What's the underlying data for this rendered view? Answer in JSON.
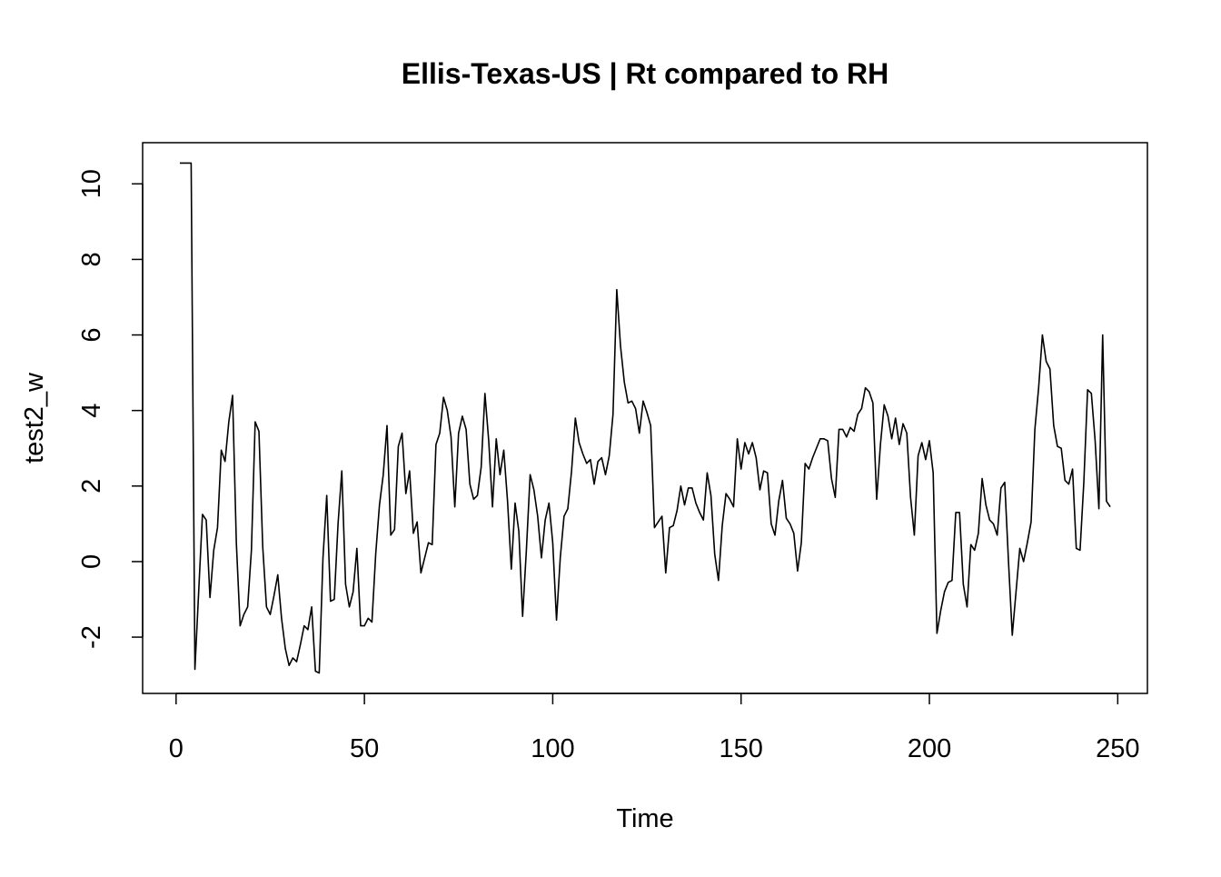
{
  "chart_data": {
    "type": "line",
    "title": "Ellis-Texas-US | Rt compared to RH",
    "xlabel": "Time",
    "ylabel": "test2_w",
    "color": "#000000",
    "x": [
      1,
      2,
      3,
      4,
      5,
      6,
      7,
      8,
      9,
      10,
      11,
      12,
      13,
      14,
      15,
      16,
      17,
      18,
      19,
      20,
      21,
      22,
      23,
      24,
      25,
      26,
      27,
      28,
      29,
      30,
      31,
      32,
      33,
      34,
      35,
      36,
      37,
      38,
      39,
      40,
      41,
      42,
      43,
      44,
      45,
      46,
      47,
      48,
      49,
      50,
      51,
      52,
      53,
      54,
      55,
      56,
      57,
      58,
      59,
      60,
      61,
      62,
      63,
      64,
      65,
      66,
      67,
      68,
      69,
      70,
      71,
      72,
      73,
      74,
      75,
      76,
      77,
      78,
      79,
      80,
      81,
      82,
      83,
      84,
      85,
      86,
      87,
      88,
      89,
      90,
      91,
      92,
      93,
      94,
      95,
      96,
      97,
      98,
      99,
      100,
      101,
      102,
      103,
      104,
      105,
      106,
      107,
      108,
      109,
      110,
      111,
      112,
      113,
      114,
      115,
      116,
      117,
      118,
      119,
      120,
      121,
      122,
      123,
      124,
      125,
      126,
      127,
      128,
      129,
      130,
      131,
      132,
      133,
      134,
      135,
      136,
      137,
      138,
      139,
      140,
      141,
      142,
      143,
      144,
      145,
      146,
      147,
      148,
      149,
      150,
      151,
      152,
      153,
      154,
      155,
      156,
      157,
      158,
      159,
      160,
      161,
      162,
      163,
      164,
      165,
      166,
      167,
      168,
      169,
      170,
      171,
      172,
      173,
      174,
      175,
      176,
      177,
      178,
      179,
      180,
      181,
      182,
      183,
      184,
      185,
      186,
      187,
      188,
      189,
      190,
      191,
      192,
      193,
      194,
      195,
      196,
      197,
      198,
      199,
      200,
      201,
      202,
      203,
      204,
      205,
      206,
      207,
      208,
      209,
      210,
      211,
      212,
      213,
      214,
      215,
      216,
      217,
      218,
      219,
      220,
      221,
      222,
      223,
      224,
      225,
      226,
      227,
      228,
      229,
      230,
      231,
      232,
      233,
      234,
      235,
      236,
      237,
      238,
      239,
      240,
      241,
      242,
      243,
      244,
      245,
      246,
      247,
      248
    ],
    "values": [
      10.55,
      10.55,
      10.55,
      10.55,
      -2.85,
      -0.8,
      1.25,
      1.1,
      -0.95,
      0.3,
      0.9,
      2.95,
      2.65,
      3.7,
      4.4,
      0.5,
      -1.7,
      -1.4,
      -1.2,
      0.3,
      3.7,
      3.45,
      0.4,
      -1.2,
      -1.4,
      -0.9,
      -0.35,
      -1.5,
      -2.3,
      -2.75,
      -2.55,
      -2.65,
      -2.2,
      -1.7,
      -1.8,
      -1.2,
      -2.9,
      -2.95,
      0.1,
      1.75,
      -1.05,
      -1.0,
      1.0,
      2.4,
      -0.6,
      -1.2,
      -0.8,
      0.35,
      -1.7,
      -1.7,
      -1.5,
      -1.6,
      0.2,
      1.5,
      2.3,
      3.6,
      0.7,
      0.85,
      3.05,
      3.4,
      1.8,
      2.4,
      0.75,
      1.05,
      -0.3,
      0.1,
      0.5,
      0.45,
      3.1,
      3.4,
      4.35,
      4.0,
      3.3,
      1.45,
      3.4,
      3.85,
      3.5,
      2.05,
      1.65,
      1.75,
      2.5,
      4.45,
      3.2,
      1.45,
      3.25,
      2.3,
      2.95,
      1.6,
      -0.2,
      1.55,
      0.8,
      -1.45,
      0.3,
      2.3,
      1.9,
      1.2,
      0.1,
      1.1,
      1.55,
      0.5,
      -1.55,
      0.1,
      1.2,
      1.4,
      2.4,
      3.8,
      3.15,
      2.85,
      2.6,
      2.7,
      2.05,
      2.65,
      2.75,
      2.3,
      2.8,
      3.9,
      7.2,
      5.7,
      4.75,
      4.2,
      4.25,
      4.05,
      3.4,
      4.25,
      3.95,
      3.6,
      0.9,
      1.05,
      1.2,
      -0.3,
      0.9,
      0.95,
      1.35,
      2.0,
      1.5,
      1.95,
      1.95,
      1.55,
      1.3,
      1.1,
      2.35,
      1.75,
      0.2,
      -0.5,
      0.95,
      1.8,
      1.65,
      1.45,
      3.25,
      2.45,
      3.15,
      2.85,
      3.15,
      2.75,
      1.9,
      2.4,
      2.35,
      1.0,
      0.7,
      1.6,
      2.15,
      1.15,
      1.0,
      0.75,
      -0.25,
      0.5,
      2.6,
      2.45,
      2.75,
      3.0,
      3.25,
      3.25,
      3.2,
      2.2,
      1.7,
      3.5,
      3.5,
      3.3,
      3.55,
      3.45,
      3.9,
      4.05,
      4.6,
      4.5,
      4.2,
      1.65,
      3.1,
      4.15,
      3.85,
      3.25,
      3.8,
      3.1,
      3.65,
      3.4,
      1.7,
      0.7,
      2.8,
      3.15,
      2.7,
      3.2,
      2.35,
      -1.9,
      -1.3,
      -0.8,
      -0.55,
      -0.5,
      1.3,
      1.3,
      -0.6,
      -1.2,
      0.45,
      0.3,
      0.75,
      2.2,
      1.5,
      1.1,
      1.0,
      0.7,
      1.95,
      2.1,
      0.0,
      -1.95,
      -0.8,
      0.35,
      0.0,
      0.5,
      1.05,
      3.5,
      4.6,
      6.0,
      5.3,
      5.1,
      3.6,
      3.05,
      3.0,
      2.15,
      2.05,
      2.45,
      0.35,
      0.3,
      2.1,
      4.55,
      4.45,
      3.2,
      1.4,
      6.0,
      1.6,
      1.45
    ],
    "xlim": [
      -8.88,
      257.88
    ],
    "ylim": [
      -3.49,
      11.09
    ],
    "xticks": [
      0,
      50,
      100,
      150,
      200,
      250
    ],
    "yticks": [
      -2,
      0,
      2,
      4,
      6,
      8,
      10
    ]
  }
}
